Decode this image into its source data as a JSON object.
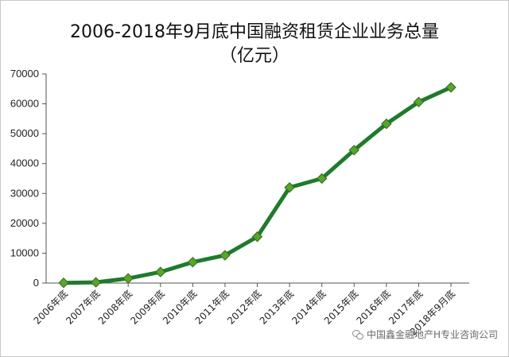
{
  "chart_data": {
    "type": "line",
    "title_line1": "2006-2018年9月底中国融资租赁企业业务总量",
    "title_line2": "（亿元）",
    "categories": [
      "2006年底",
      "2007年底",
      "2008年底",
      "2009年底",
      "2010年底",
      "2011年底",
      "2012年底",
      "2013年底",
      "2014年底",
      "2015年底",
      "2016年底",
      "2017年底",
      "2018年9月底"
    ],
    "values": [
      80,
      240,
      1550,
      3700,
      7000,
      9300,
      15500,
      32000,
      35000,
      44500,
      53300,
      60600,
      65500
    ],
    "yticks": [
      0,
      10000,
      20000,
      30000,
      40000,
      50000,
      60000,
      70000
    ],
    "ylim": [
      0,
      70000
    ],
    "grid": false,
    "line_color": "#1e7b2c",
    "marker_color": "#5aa32d"
  },
  "watermark": {
    "text": "中国鑫金融地产H专业咨询公司"
  }
}
